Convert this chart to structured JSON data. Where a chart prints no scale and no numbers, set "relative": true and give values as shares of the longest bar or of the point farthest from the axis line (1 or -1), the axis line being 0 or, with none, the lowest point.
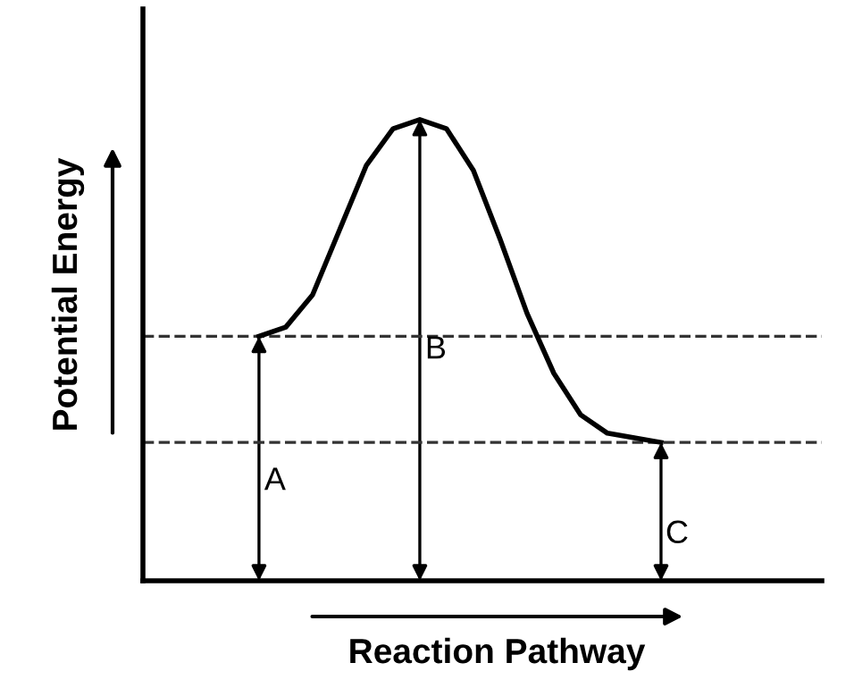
{
  "chart_data": {
    "type": "line",
    "relative": true,
    "xlabel": "Reaction Pathway",
    "ylabel": "Potential Energy",
    "categories": [
      null,
      null,
      null,
      null,
      null,
      null,
      null,
      null,
      null,
      null,
      null,
      null,
      null,
      null,
      null,
      null
    ],
    "series": [
      {
        "color": "#000000",
        "values": [
          0.53,
          0.55,
          0.62,
          0.76,
          0.9,
          0.98,
          1.0,
          0.98,
          0.89,
          0.74,
          0.58,
          0.45,
          0.36,
          0.32,
          0.31,
          0.3
        ]
      }
    ],
    "ref_lines": [
      {
        "axis": "y",
        "value": 0.53,
        "line_style": "dashed",
        "color": "#333333"
      },
      {
        "axis": "y",
        "value": 0.3,
        "line_style": "dashed",
        "color": "#333333"
      }
    ],
    "annotations": [
      "A",
      "B",
      "C"
    ],
    "legend": false,
    "marker": "none",
    "line_style": "solid"
  }
}
